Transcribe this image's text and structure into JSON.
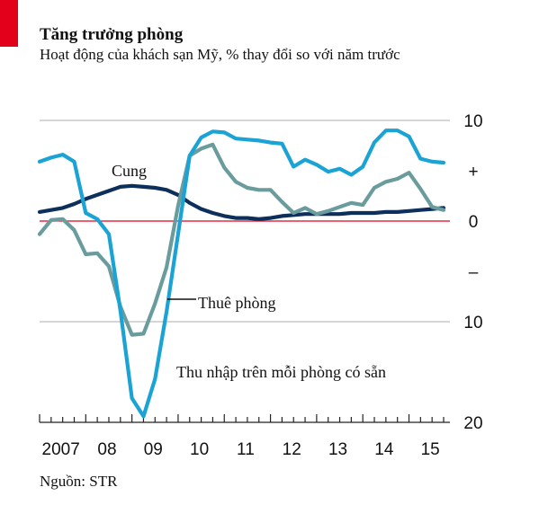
{
  "header": {
    "title": "Tăng trưởng phòng",
    "subtitle": "Hoạt động của khách sạn Mỹ, % thay đổi so với năm trước"
  },
  "footer": {
    "source": "Nguồn: STR"
  },
  "colors": {
    "brand_red": "#e3001b",
    "supply": "#0d2f5c",
    "demand": "#6a9c9d",
    "revpar": "#1aa3d4",
    "zero_line": "#e3001b",
    "grid": "#bdbdbd"
  },
  "chart_data": {
    "type": "line",
    "title": "Tăng trưởng phòng",
    "subtitle": "Hoạt động của khách sạn Mỹ, % thay đổi so với năm trước",
    "xlabel": "",
    "ylabel": "",
    "xlim": [
      2007.0,
      2015.75
    ],
    "ylim": [
      -20,
      10
    ],
    "y_ticks": [
      {
        "value": 10,
        "label": "10"
      },
      {
        "value": 5,
        "label": "+"
      },
      {
        "value": 0,
        "label": "0"
      },
      {
        "value": -5,
        "label": "–"
      },
      {
        "value": -10,
        "label": "10"
      },
      {
        "value": -20,
        "label": "20"
      }
    ],
    "x_ticks": [
      {
        "value": 2007.5,
        "label": "2007"
      },
      {
        "value": 2008.5,
        "label": "08"
      },
      {
        "value": 2009.5,
        "label": "09"
      },
      {
        "value": 2010.5,
        "label": "10"
      },
      {
        "value": 2011.5,
        "label": "11"
      },
      {
        "value": 2012.5,
        "label": "12"
      },
      {
        "value": 2013.5,
        "label": "13"
      },
      {
        "value": 2014.5,
        "label": "14"
      },
      {
        "value": 2015.5,
        "label": "15"
      }
    ],
    "grid": true,
    "annotations": [
      {
        "text": "Cung",
        "series": "Cung"
      },
      {
        "text": "Thuê phòng",
        "series": "Thuê phòng"
      },
      {
        "text": "Thu nhập trên mỗi phòng có sẵn",
        "series": "Thu nhập trên mỗi phòng có sẵn"
      }
    ],
    "x": [
      2007.0,
      2007.25,
      2007.5,
      2007.75,
      2008.0,
      2008.25,
      2008.5,
      2008.75,
      2009.0,
      2009.25,
      2009.5,
      2009.75,
      2010.0,
      2010.25,
      2010.5,
      2010.75,
      2011.0,
      2011.25,
      2011.5,
      2011.75,
      2012.0,
      2012.25,
      2012.5,
      2012.75,
      2013.0,
      2013.25,
      2013.5,
      2013.75,
      2014.0,
      2014.25,
      2014.5,
      2014.75,
      2015.0,
      2015.25,
      2015.5,
      2015.75
    ],
    "series": [
      {
        "name": "Cung",
        "color": "#0d2f5c",
        "values": [
          0.9,
          1.1,
          1.3,
          1.7,
          2.2,
          2.6,
          3.0,
          3.4,
          3.5,
          3.4,
          3.3,
          3.1,
          2.6,
          1.8,
          1.2,
          0.8,
          0.5,
          0.3,
          0.3,
          0.2,
          0.3,
          0.5,
          0.6,
          0.7,
          0.7,
          0.7,
          0.7,
          0.8,
          0.8,
          0.8,
          0.9,
          0.9,
          1.0,
          1.1,
          1.2,
          1.3
        ]
      },
      {
        "name": "Thuê phòng",
        "color": "#6a9c9d",
        "values": [
          -1.3,
          0.1,
          0.2,
          -0.9,
          -3.3,
          -3.2,
          -4.5,
          -8.5,
          -11.3,
          -11.2,
          -8.2,
          -4.6,
          1.5,
          6.5,
          7.2,
          7.6,
          5.3,
          3.9,
          3.3,
          3.1,
          3.1,
          1.9,
          0.8,
          1.3,
          0.7,
          1.0,
          1.4,
          1.8,
          1.6,
          3.3,
          3.9,
          4.2,
          4.8,
          3.2,
          1.4,
          1.1
        ]
      },
      {
        "name": "Thu nhập trên mỗi phòng có sẵn",
        "color": "#1aa3d4",
        "values": [
          5.9,
          6.3,
          6.6,
          5.9,
          0.8,
          0.2,
          -1.3,
          -8.9,
          -17.6,
          -19.4,
          -15.7,
          -9.0,
          -1.3,
          6.5,
          8.3,
          8.9,
          8.8,
          8.2,
          8.1,
          8.0,
          7.8,
          7.7,
          5.4,
          6.1,
          5.6,
          4.9,
          5.2,
          4.6,
          5.4,
          7.8,
          9.0,
          9.0,
          8.4,
          6.2,
          5.9,
          5.8
        ]
      }
    ]
  }
}
